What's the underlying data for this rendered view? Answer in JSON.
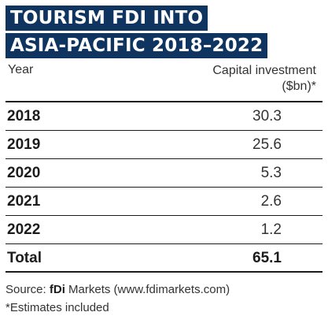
{
  "title": {
    "line1": "TOURISM FDI INTO",
    "line2": "ASIA-PACIFIC 2018–2022"
  },
  "table": {
    "col_year": "Year",
    "col_value_line1": "Capital investment",
    "col_value_line2": "($bn)*",
    "rows": [
      {
        "year": "2018",
        "value": "30.3"
      },
      {
        "year": "2019",
        "value": "25.6"
      },
      {
        "year": "2020",
        "value": "5.3"
      },
      {
        "year": "2021",
        "value": "2.6"
      },
      {
        "year": "2022",
        "value": "1.2"
      }
    ],
    "total_label": "Total",
    "total_value": "65.1"
  },
  "source": {
    "prefix": "Source: ",
    "brand": "fDi",
    "rest": " Markets (www.fdimarkets.com)",
    "note": "*Estimates included"
  },
  "colors": {
    "title_bg": "#0f3460",
    "title_text": "#ffffff",
    "rule": "#1b1b1b"
  },
  "chart_data": {
    "type": "table",
    "title": "TOURISM FDI INTO ASIA-PACIFIC 2018–2022",
    "columns": [
      "Year",
      "Capital investment ($bn)*"
    ],
    "categories": [
      "2018",
      "2019",
      "2020",
      "2021",
      "2022"
    ],
    "values": [
      30.3,
      25.6,
      5.3,
      2.6,
      1.2
    ],
    "total": 65.1
  }
}
